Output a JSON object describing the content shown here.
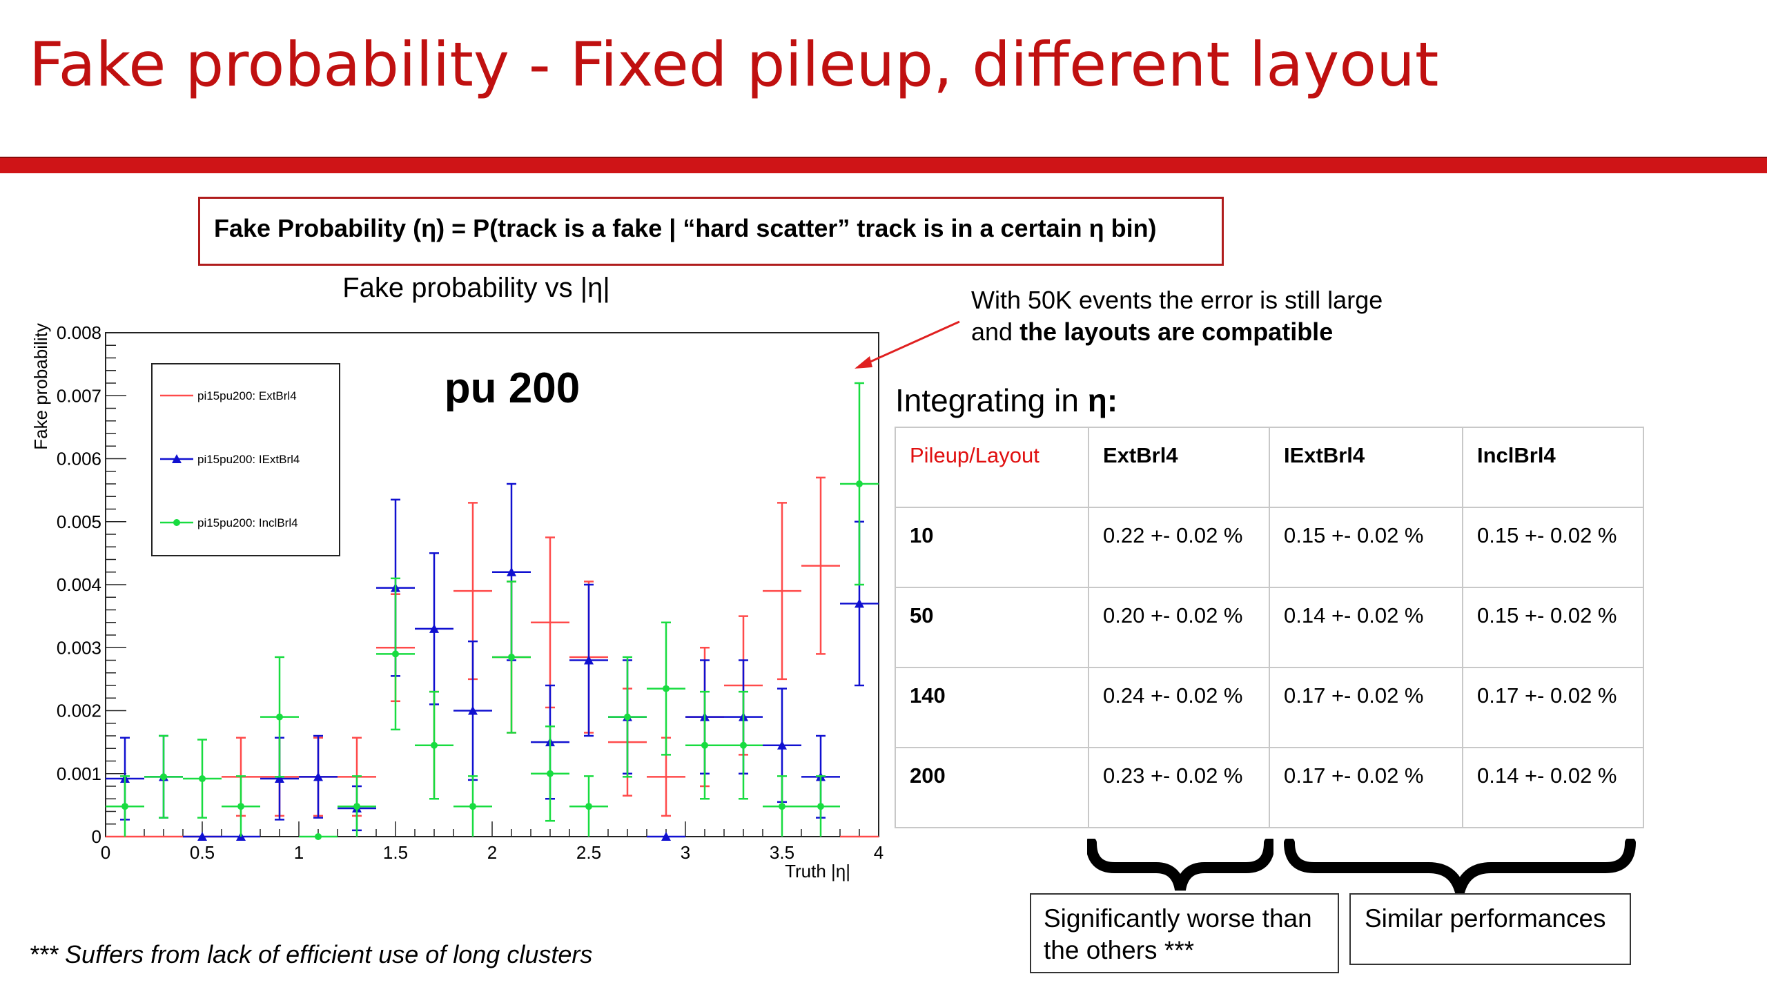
{
  "slide": {
    "title": "Fake probability - Fixed pileup, different layout",
    "formula": {
      "bold_part": "Fake Probability",
      "rest": " (η) = P(track is a fake | “hard scatter” track is in a certain η bin)"
    },
    "annotation": {
      "line1": "With 50K events the error is still large",
      "line2_prefix": "and ",
      "line2_bold": "the layouts are compatible"
    },
    "integrating": {
      "prefix": "Integrating in ",
      "symbol": "η:"
    },
    "footnote": "*** Suffers from lack of efficient use of long clusters",
    "box_worse": {
      "line1": "Significantly worse than",
      "line2": "the others ***"
    },
    "box_similar": "Similar performances"
  },
  "table": {
    "header": [
      "Pileup/Layout",
      "ExtBrl4",
      "IExtBrl4",
      "InclBrl4"
    ],
    "rows": [
      [
        "10",
        "0.22 +- 0.02 %",
        "0.15 +- 0.02 %",
        "0.15 +- 0.02 %"
      ],
      [
        "50",
        "0.20 +- 0.02 %",
        "0.14 +- 0.02 %",
        "0.15 +- 0.02 %"
      ],
      [
        "140",
        "0.24 +- 0.02 %",
        "0.17 +- 0.02 %",
        "0.17 +- 0.02 %"
      ],
      [
        "200",
        "0.23 +- 0.02 %",
        "0.17 +- 0.02 %",
        "0.14 +- 0.02 %"
      ]
    ]
  },
  "chart_data": {
    "type": "scatter",
    "title": "Fake probability vs |η|",
    "panel_label": "pu 200",
    "xlabel": "Truth |η|",
    "ylabel": "Fake probability",
    "xlim": [
      0,
      4
    ],
    "ylim": [
      0,
      0.008
    ],
    "x_ticks": [
      "0",
      "0.5",
      "1",
      "1.5",
      "2",
      "2.5",
      "3",
      "3.5",
      "4"
    ],
    "y_ticks": [
      "0",
      "0.001",
      "0.002",
      "0.003",
      "0.004",
      "0.005",
      "0.006",
      "0.007",
      "0.008"
    ],
    "legend_position": "top-left",
    "series": [
      {
        "name": "pi15pu200: ExtBrl4",
        "color": "#ff4a4a",
        "marker": "none",
        "x": [
          0.1,
          0.3,
          0.5,
          0.7,
          0.9,
          1.1,
          1.3,
          1.5,
          1.7,
          1.9,
          2.1,
          2.3,
          2.5,
          2.7,
          2.9,
          3.1,
          3.3,
          3.5,
          3.7,
          3.9
        ],
        "y": [
          0.0,
          0.0,
          0.0,
          0.00095,
          0.00095,
          0.00095,
          0.00095,
          0.003,
          0.00145,
          0.0039,
          0.00285,
          0.0034,
          0.00285,
          0.0015,
          0.00095,
          0.0019,
          0.0024,
          0.0039,
          0.0043,
          0.0
        ],
        "err": [
          0,
          0,
          0,
          0.00062,
          0.00062,
          0.00062,
          0.00062,
          0.00085,
          0.00085,
          0.0014,
          0.0012,
          0.00135,
          0.0012,
          0.00085,
          0.00062,
          0.0011,
          0.0011,
          0.0014,
          0.0014,
          0
        ]
      },
      {
        "name": "pi15pu200: IExtBrl4",
        "color": "#1010d0",
        "marker": "triangle",
        "x": [
          0.1,
          0.3,
          0.5,
          0.7,
          0.9,
          1.1,
          1.3,
          1.5,
          1.7,
          1.9,
          2.1,
          2.3,
          2.5,
          2.7,
          2.9,
          3.1,
          3.3,
          3.5,
          3.7,
          3.9
        ],
        "y": [
          0.00092,
          0.00095,
          0.0,
          0.0,
          0.00092,
          0.00095,
          0.00045,
          0.00395,
          0.0033,
          0.002,
          0.0042,
          0.0015,
          0.0028,
          0.0019,
          0.0,
          0.0019,
          0.0019,
          0.00145,
          0.00095,
          0.0037
        ],
        "err": [
          0.00065,
          0.00065,
          0,
          0,
          0.00065,
          0.00065,
          0.00035,
          0.0014,
          0.0012,
          0.0011,
          0.0014,
          0.0009,
          0.0012,
          0.0009,
          0,
          0.0009,
          0.0009,
          0.0009,
          0.00065,
          0.0013
        ]
      },
      {
        "name": "pi15pu200: InclBrl4",
        "color": "#18dc40",
        "marker": "circle",
        "x": [
          0.1,
          0.3,
          0.5,
          0.7,
          0.9,
          1.1,
          1.3,
          1.5,
          1.7,
          1.9,
          2.1,
          2.3,
          2.5,
          2.7,
          2.9,
          3.1,
          3.3,
          3.5,
          3.7,
          3.9
        ],
        "y": [
          0.00048,
          0.00095,
          0.00092,
          0.00048,
          0.0019,
          0.0,
          0.00048,
          0.0029,
          0.00145,
          0.00048,
          0.00285,
          0.001,
          0.00048,
          0.0019,
          0.00235,
          0.00145,
          0.00145,
          0.00048,
          0.00048,
          0.0056
        ],
        "err": [
          0.00048,
          0.00065,
          0.00062,
          0.00048,
          0.00095,
          0,
          0.00048,
          0.0012,
          0.00085,
          0.00048,
          0.0012,
          0.00075,
          0.00048,
          0.00095,
          0.00105,
          0.00085,
          0.00085,
          0.00048,
          0.00048,
          0.0016
        ]
      }
    ]
  }
}
